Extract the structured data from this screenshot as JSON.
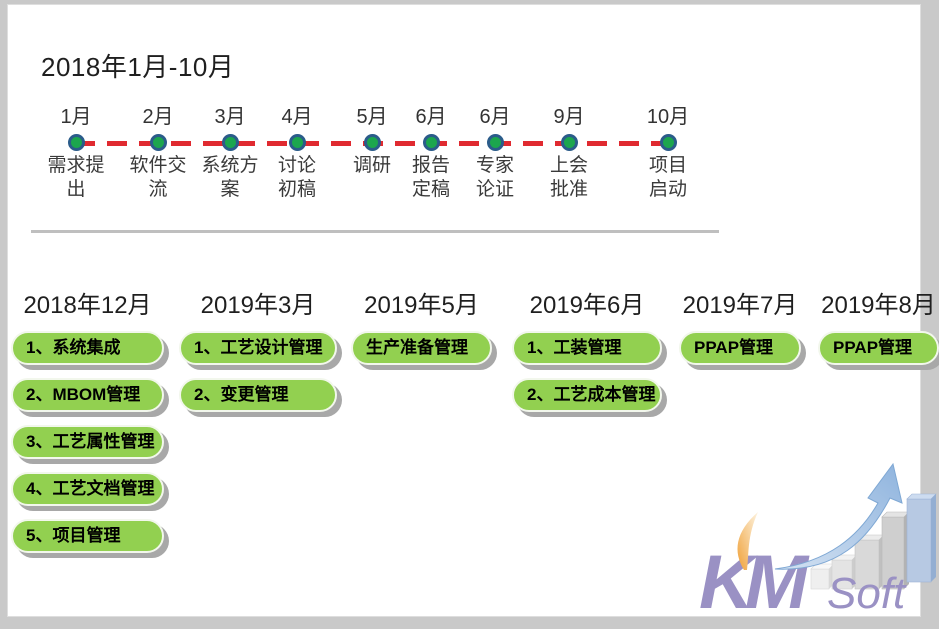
{
  "slide": {
    "title": "2018年1月-10月"
  },
  "timeline": {
    "milestones": [
      {
        "month": "1月",
        "label": "需求提\n出"
      },
      {
        "month": "2月",
        "label": "软件交\n流"
      },
      {
        "month": "3月",
        "label": "系统方\n案"
      },
      {
        "month": "4月",
        "label": "讨论\n初稿"
      },
      {
        "month": "5月",
        "label": "调研"
      },
      {
        "month": "6月",
        "label": "报告\n定稿"
      },
      {
        "month": "6月",
        "label": "专家\n论证"
      },
      {
        "month": "9月",
        "label": "上会\n批准"
      },
      {
        "month": "10月",
        "label": "项目\n启动"
      }
    ]
  },
  "phases": [
    {
      "header": "2018年12月",
      "items": [
        "1、系统集成",
        "2、MBOM管理",
        "3、工艺属性管理",
        "4、工艺文档管理",
        "5、项目管理"
      ]
    },
    {
      "header": "2019年3月",
      "items": [
        "1、工艺设计管理",
        "2、变更管理"
      ]
    },
    {
      "header": "2019年5月",
      "items": [
        "生产准备管理"
      ]
    },
    {
      "header": "2019年6月",
      "items": [
        "1、工装管理",
        "2、工艺成本管理"
      ]
    },
    {
      "header": "2019年7月",
      "items": [
        "PPAP管理"
      ]
    },
    {
      "header": "2019年8月",
      "items": [
        "PPAP管理"
      ]
    }
  ],
  "logo": {
    "km": "KM",
    "soft": "Soft"
  },
  "colors": {
    "pill_green": "#92d050",
    "pill_shadow_gray": "#a8a8a8",
    "dash_red": "#e02a30",
    "dot_green": "#1ca64e",
    "dot_border_navy": "#2b5c8a",
    "divider_gray": "#bfbfbf",
    "logo_purple": "#9a91c4",
    "logo_orange": "#f0a139",
    "logo_blue": "#b7c9e3",
    "text_dark": "#1f1f1f"
  }
}
